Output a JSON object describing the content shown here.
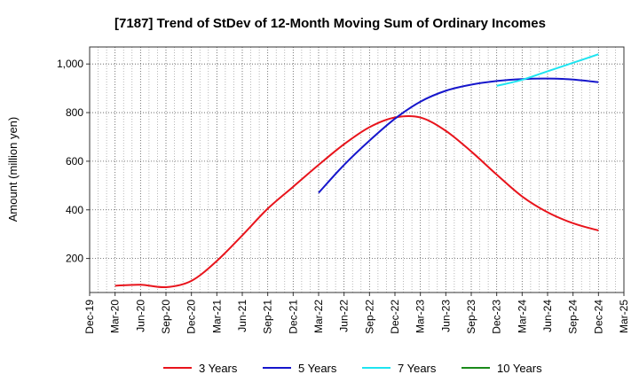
{
  "chart_data": {
    "type": "line",
    "title": "[7187]  Trend of StDev of 12-Month Moving Sum of Ordinary Incomes",
    "xlabel": "",
    "ylabel": "Amount (million yen)",
    "ylim": [
      60,
      1070
    ],
    "yticks": [
      200,
      400,
      600,
      800,
      1000
    ],
    "ytick_labels": [
      "200",
      "400",
      "600",
      "800",
      "1,000"
    ],
    "x_tick_labels": [
      "Dec-19",
      "Mar-20",
      "Jun-20",
      "Sep-20",
      "Dec-20",
      "Mar-21",
      "Jun-21",
      "Sep-21",
      "Dec-21",
      "Mar-22",
      "Jun-22",
      "Sep-22",
      "Dec-22",
      "Mar-23",
      "Jun-23",
      "Sep-23",
      "Dec-23",
      "Mar-24",
      "Jun-24",
      "Sep-24",
      "Dec-24",
      "Mar-25"
    ],
    "grid": true,
    "legend_position": "bottom",
    "series": [
      {
        "name": "3 Years",
        "color": "#e8141c",
        "x": [
          "Mar-20",
          "Jun-20",
          "Sep-20",
          "Dec-20",
          "Mar-21",
          "Jun-21",
          "Sep-21",
          "Dec-21",
          "Mar-22",
          "Jun-22",
          "Sep-22",
          "Dec-22",
          "Mar-23",
          "Jun-23",
          "Sep-23",
          "Dec-23",
          "Mar-24",
          "Jun-24",
          "Sep-24",
          "Dec-24"
        ],
        "values": [
          88,
          92,
          82,
          108,
          190,
          295,
          405,
          495,
          585,
          670,
          740,
          780,
          780,
          725,
          640,
          545,
          455,
          390,
          345,
          315
        ]
      },
      {
        "name": "5 Years",
        "color": "#1616cc",
        "x": [
          "Mar-22",
          "Jun-22",
          "Sep-22",
          "Dec-22",
          "Mar-23",
          "Jun-23",
          "Sep-23",
          "Dec-23",
          "Mar-24",
          "Jun-24",
          "Sep-24",
          "Dec-24"
        ],
        "values": [
          470,
          585,
          685,
          775,
          845,
          890,
          915,
          930,
          938,
          940,
          936,
          925
        ]
      },
      {
        "name": "7 Years",
        "color": "#1ee4f0",
        "x": [
          "Dec-23",
          "Mar-24",
          "Jun-24",
          "Sep-24",
          "Dec-24"
        ],
        "values": [
          910,
          935,
          970,
          1005,
          1040
        ]
      },
      {
        "name": "10 Years",
        "color": "#1a8a1a",
        "x": [],
        "values": []
      }
    ]
  }
}
